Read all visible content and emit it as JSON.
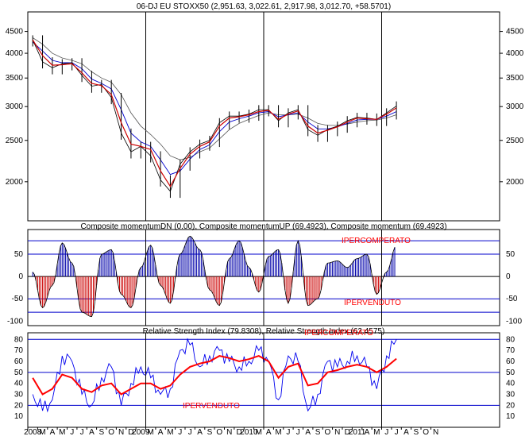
{
  "colors": {
    "background": "#ffffff",
    "frame": "#000000",
    "price": "#000000",
    "ma_red": "#cc0000",
    "ma_blue": "#0000cc",
    "ma_gray": "#555555",
    "hline_blue": "#0000cc",
    "mom_up": "#0000aa",
    "mom_dn": "#cc0000",
    "rsi_blue": "#0000ee",
    "rsi_red": "#ff0000",
    "label_red": "#ff0000"
  },
  "chart_data": [
    {
      "type": "line",
      "title": "06-DJ EU STOXX50 (2,951.63, 3,022.61, 2,917.98, 3,012.70, +58.5701)",
      "scale": "log",
      "ylim": [
        1620,
        5000
      ],
      "yticks": [
        2000,
        2500,
        3000,
        3500,
        4000,
        4500
      ],
      "ytick_labels": [
        "2000",
        "2500",
        "3000",
        "3500",
        "4000",
        "4500"
      ],
      "x_start": "2008-01",
      "x_end": "2011-12",
      "vertical_markers": [
        "2009-01",
        "2010-01",
        "2011-01"
      ],
      "price_series": [
        [
          "2008-01",
          4300
        ],
        [
          "2008-02",
          3820
        ],
        [
          "2008-03",
          3700
        ],
        [
          "2008-04",
          3780
        ],
        [
          "2008-05",
          3800
        ],
        [
          "2008-06",
          3550
        ],
        [
          "2008-07",
          3350
        ],
        [
          "2008-08",
          3380
        ],
        [
          "2008-09",
          3150
        ],
        [
          "2008-10",
          2600
        ],
        [
          "2008-11",
          2350
        ],
        [
          "2008-12",
          2420
        ],
        [
          "2009-01",
          2300
        ],
        [
          "2009-02",
          2020
        ],
        [
          "2009-03",
          1900
        ],
        [
          "2009-04",
          2200
        ],
        [
          "2009-05",
          2350
        ],
        [
          "2009-06",
          2450
        ],
        [
          "2009-07",
          2500
        ],
        [
          "2009-08",
          2750
        ],
        [
          "2009-09",
          2850
        ],
        [
          "2009-10",
          2850
        ],
        [
          "2009-11",
          2880
        ],
        [
          "2009-12",
          2950
        ],
        [
          "2010-01",
          2950
        ],
        [
          "2010-02",
          2780
        ],
        [
          "2010-03",
          2900
        ],
        [
          "2010-04",
          2950
        ],
        [
          "2010-05",
          2650
        ],
        [
          "2010-06",
          2570
        ],
        [
          "2010-07",
          2650
        ],
        [
          "2010-08",
          2700
        ],
        [
          "2010-09",
          2780
        ],
        [
          "2010-10",
          2830
        ],
        [
          "2010-11",
          2820
        ],
        [
          "2010-12",
          2800
        ],
        [
          "2011-01",
          2900
        ],
        [
          "2011-02",
          3010
        ]
      ],
      "ma_red": [
        [
          "2008-01",
          4300
        ],
        [
          "2008-02",
          3950
        ],
        [
          "2008-03",
          3750
        ],
        [
          "2008-04",
          3760
        ],
        [
          "2008-05",
          3780
        ],
        [
          "2008-06",
          3600
        ],
        [
          "2008-07",
          3400
        ],
        [
          "2008-08",
          3360
        ],
        [
          "2008-09",
          3200
        ],
        [
          "2008-10",
          2750
        ],
        [
          "2008-11",
          2450
        ],
        [
          "2008-12",
          2420
        ],
        [
          "2009-01",
          2380
        ],
        [
          "2009-02",
          2120
        ],
        [
          "2009-03",
          1950
        ],
        [
          "2009-04",
          2150
        ],
        [
          "2009-05",
          2320
        ],
        [
          "2009-06",
          2420
        ],
        [
          "2009-07",
          2480
        ],
        [
          "2009-08",
          2700
        ],
        [
          "2009-09",
          2820
        ],
        [
          "2009-10",
          2840
        ],
        [
          "2009-11",
          2870
        ],
        [
          "2009-12",
          2920
        ],
        [
          "2010-01",
          2940
        ],
        [
          "2010-02",
          2800
        ],
        [
          "2010-03",
          2880
        ],
        [
          "2010-04",
          2930
        ],
        [
          "2010-05",
          2700
        ],
        [
          "2010-06",
          2600
        ],
        [
          "2010-07",
          2640
        ],
        [
          "2010-08",
          2690
        ],
        [
          "2010-09",
          2760
        ],
        [
          "2010-10",
          2820
        ],
        [
          "2010-11",
          2810
        ],
        [
          "2010-12",
          2800
        ],
        [
          "2011-01",
          2880
        ],
        [
          "2011-02",
          2980
        ]
      ],
      "ma_blue": [
        [
          "2008-01",
          4250
        ],
        [
          "2008-02",
          4050
        ],
        [
          "2008-03",
          3850
        ],
        [
          "2008-04",
          3800
        ],
        [
          "2008-05",
          3800
        ],
        [
          "2008-06",
          3680
        ],
        [
          "2008-07",
          3480
        ],
        [
          "2008-08",
          3400
        ],
        [
          "2008-09",
          3300
        ],
        [
          "2008-10",
          2950
        ],
        [
          "2008-11",
          2600
        ],
        [
          "2008-12",
          2480
        ],
        [
          "2009-01",
          2420
        ],
        [
          "2009-02",
          2250
        ],
        [
          "2009-03",
          2080
        ],
        [
          "2009-04",
          2120
        ],
        [
          "2009-05",
          2260
        ],
        [
          "2009-06",
          2380
        ],
        [
          "2009-07",
          2440
        ],
        [
          "2009-08",
          2620
        ],
        [
          "2009-09",
          2760
        ],
        [
          "2009-10",
          2810
        ],
        [
          "2009-11",
          2850
        ],
        [
          "2009-12",
          2900
        ],
        [
          "2010-01",
          2920
        ],
        [
          "2010-02",
          2840
        ],
        [
          "2010-03",
          2870
        ],
        [
          "2010-04",
          2900
        ],
        [
          "2010-05",
          2760
        ],
        [
          "2010-06",
          2660
        ],
        [
          "2010-07",
          2660
        ],
        [
          "2010-08",
          2690
        ],
        [
          "2010-09",
          2740
        ],
        [
          "2010-10",
          2790
        ],
        [
          "2010-11",
          2800
        ],
        [
          "2010-12",
          2800
        ],
        [
          "2011-01",
          2850
        ],
        [
          "2011-02",
          2920
        ]
      ],
      "ma_gray": [
        [
          "2008-01",
          4350
        ],
        [
          "2008-02",
          4200
        ],
        [
          "2008-03",
          4000
        ],
        [
          "2008-04",
          3900
        ],
        [
          "2008-05",
          3850
        ],
        [
          "2008-06",
          3780
        ],
        [
          "2008-07",
          3620
        ],
        [
          "2008-08",
          3500
        ],
        [
          "2008-09",
          3420
        ],
        [
          "2008-10",
          3200
        ],
        [
          "2008-11",
          2900
        ],
        [
          "2008-12",
          2700
        ],
        [
          "2009-01",
          2580
        ],
        [
          "2009-02",
          2450
        ],
        [
          "2009-03",
          2300
        ],
        [
          "2009-04",
          2250
        ],
        [
          "2009-05",
          2280
        ],
        [
          "2009-06",
          2350
        ],
        [
          "2009-07",
          2400
        ],
        [
          "2009-08",
          2520
        ],
        [
          "2009-09",
          2650
        ],
        [
          "2009-10",
          2740
        ],
        [
          "2009-11",
          2800
        ],
        [
          "2009-12",
          2860
        ],
        [
          "2010-01",
          2900
        ],
        [
          "2010-02",
          2870
        ],
        [
          "2010-03",
          2870
        ],
        [
          "2010-04",
          2880
        ],
        [
          "2010-05",
          2820
        ],
        [
          "2010-06",
          2740
        ],
        [
          "2010-07",
          2710
        ],
        [
          "2010-08",
          2710
        ],
        [
          "2010-09",
          2730
        ],
        [
          "2010-10",
          2760
        ],
        [
          "2010-11",
          2780
        ],
        [
          "2010-12",
          2790
        ],
        [
          "2011-01",
          2820
        ],
        [
          "2011-02",
          2870
        ]
      ]
    },
    {
      "type": "bar",
      "title": "Composite momentumDN (0.00), Composite momentumUP (69.4923), Composite momentum (69.4923)",
      "ylim": [
        -110,
        105
      ],
      "yticks": [
        -100,
        -50,
        0,
        50
      ],
      "ytick_labels": [
        "-100",
        "-50",
        "0",
        "50"
      ],
      "hlines": [
        80,
        50,
        -50,
        -80
      ],
      "annotations": {
        "overbought": "IPERCOMPERATO",
        "oversold": "IPERVENDUTO"
      },
      "series": [
        {
          "values": [
            [
              "2008-01",
              10
            ],
            [
              "2008-02",
              -70
            ],
            [
              "2008-03",
              -20
            ],
            [
              "2008-04",
              75
            ],
            [
              "2008-05",
              30
            ],
            [
              "2008-06",
              -80
            ],
            [
              "2008-07",
              -90
            ],
            [
              "2008-08",
              50
            ],
            [
              "2008-09",
              60
            ],
            [
              "2008-10",
              -40
            ],
            [
              "2008-11",
              -70
            ],
            [
              "2008-12",
              20
            ],
            [
              "2009-01",
              70
            ],
            [
              "2009-02",
              -20
            ],
            [
              "2009-03",
              -60
            ],
            [
              "2009-04",
              50
            ],
            [
              "2009-05",
              90
            ],
            [
              "2009-06",
              60
            ],
            [
              "2009-07",
              -30
            ],
            [
              "2009-08",
              -65
            ],
            [
              "2009-09",
              40
            ],
            [
              "2009-10",
              80
            ],
            [
              "2009-11",
              20
            ],
            [
              "2009-12",
              -35
            ],
            [
              "2010-01",
              45
            ],
            [
              "2010-02",
              60
            ],
            [
              "2010-03",
              -60
            ],
            [
              "2010-04",
              80
            ],
            [
              "2010-05",
              -65
            ],
            [
              "2010-06",
              -50
            ],
            [
              "2010-07",
              30
            ],
            [
              "2010-08",
              35
            ],
            [
              "2010-09",
              20
            ],
            [
              "2010-10",
              40
            ],
            [
              "2010-11",
              50
            ],
            [
              "2010-12",
              -40
            ],
            [
              "2011-01",
              10
            ],
            [
              "2011-02",
              69.4923
            ]
          ]
        }
      ]
    },
    {
      "type": "line",
      "title": "Relative Strength Index (79.8308), Relative Strength Index (62.4575)",
      "ylim": [
        0,
        86
      ],
      "yticks": [
        10,
        20,
        30,
        40,
        50,
        60,
        70,
        80
      ],
      "ytick_labels": [
        "10",
        "20",
        "30",
        "40",
        "50",
        "60",
        "70",
        "80"
      ],
      "hlines": [
        80,
        50,
        20
      ],
      "annotations": {
        "overbought": "IPERCOMPERATO",
        "oversold": "IPERVENDUTO"
      },
      "series": [
        {
          "values": [
            [
              "2008-01",
              30
            ],
            [
              "2008-02",
              15
            ],
            [
              "2008-03",
              25
            ],
            [
              "2008-04",
              65
            ],
            [
              "2008-05",
              60
            ],
            [
              "2008-06",
              30
            ],
            [
              "2008-07",
              20
            ],
            [
              "2008-08",
              45
            ],
            [
              "2008-09",
              55
            ],
            [
              "2008-10",
              20
            ],
            [
              "2008-11",
              40
            ],
            [
              "2008-12",
              55
            ],
            [
              "2009-01",
              45
            ],
            [
              "2009-02",
              30
            ],
            [
              "2009-03",
              35
            ],
            [
              "2009-04",
              70
            ],
            [
              "2009-05",
              75
            ],
            [
              "2009-06",
              55
            ],
            [
              "2009-07",
              65
            ],
            [
              "2009-08",
              70
            ],
            [
              "2009-09",
              60
            ],
            [
              "2009-10",
              55
            ],
            [
              "2009-11",
              60
            ],
            [
              "2009-12",
              70
            ],
            [
              "2010-01",
              60
            ],
            [
              "2010-02",
              25
            ],
            [
              "2010-03",
              65
            ],
            [
              "2010-04",
              60
            ],
            [
              "2010-05",
              15
            ],
            [
              "2010-06",
              30
            ],
            [
              "2010-07",
              60
            ],
            [
              "2010-08",
              55
            ],
            [
              "2010-09",
              60
            ],
            [
              "2010-10",
              65
            ],
            [
              "2010-11",
              55
            ],
            [
              "2010-12",
              35
            ],
            [
              "2011-01",
              65
            ],
            [
              "2011-02",
              79.8308
            ]
          ]
        },
        {
          "values": [
            [
              "2008-01",
              45
            ],
            [
              "2008-02",
              30
            ],
            [
              "2008-03",
              35
            ],
            [
              "2008-04",
              48
            ],
            [
              "2008-05",
              45
            ],
            [
              "2008-06",
              35
            ],
            [
              "2008-07",
              32
            ],
            [
              "2008-08",
              38
            ],
            [
              "2008-09",
              40
            ],
            [
              "2008-10",
              30
            ],
            [
              "2008-11",
              35
            ],
            [
              "2008-12",
              40
            ],
            [
              "2009-01",
              40
            ],
            [
              "2009-02",
              35
            ],
            [
              "2009-03",
              38
            ],
            [
              "2009-04",
              48
            ],
            [
              "2009-05",
              55
            ],
            [
              "2009-06",
              58
            ],
            [
              "2009-07",
              60
            ],
            [
              "2009-08",
              65
            ],
            [
              "2009-09",
              63
            ],
            [
              "2009-10",
              60
            ],
            [
              "2009-11",
              62
            ],
            [
              "2009-12",
              65
            ],
            [
              "2010-01",
              60
            ],
            [
              "2010-02",
              45
            ],
            [
              "2010-03",
              55
            ],
            [
              "2010-04",
              58
            ],
            [
              "2010-05",
              38
            ],
            [
              "2010-06",
              40
            ],
            [
              "2010-07",
              50
            ],
            [
              "2010-08",
              52
            ],
            [
              "2010-09",
              55
            ],
            [
              "2010-10",
              57
            ],
            [
              "2010-11",
              55
            ],
            [
              "2010-12",
              50
            ],
            [
              "2011-01",
              55
            ],
            [
              "2011-02",
              62.4575
            ]
          ]
        }
      ]
    }
  ],
  "x_axis": {
    "labels": [
      "2008",
      "M",
      "A",
      "M",
      "J",
      "J",
      "A",
      "S",
      "O",
      "N",
      "D",
      "2009",
      "M",
      "A",
      "M",
      "J",
      "J",
      "A",
      "S",
      "O",
      "N",
      "D",
      "2010",
      "M",
      "A",
      "M",
      "J",
      "J",
      "A",
      "S",
      "O",
      "N",
      "D",
      "2011",
      "A",
      "M",
      "J",
      "J",
      "A",
      "S",
      "O",
      "N"
    ],
    "start": "2008-01"
  }
}
